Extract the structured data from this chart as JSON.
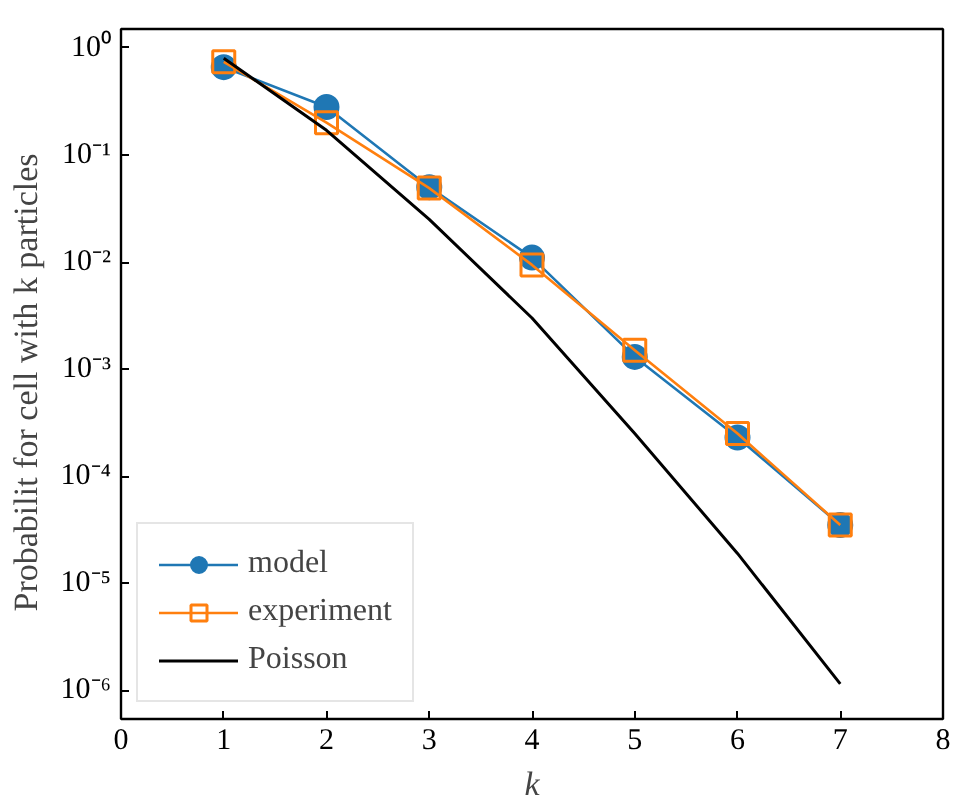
{
  "chart_data": {
    "type": "line",
    "xlabel": "k",
    "ylabel": "Probabilit   for cell with k particles",
    "x": [
      1,
      2,
      3,
      4,
      5,
      6,
      7
    ],
    "series": [
      {
        "name": "model",
        "color": "#1f77b4",
        "marker": "circle",
        "values": [
          0.66,
          0.28,
          0.05,
          0.011,
          0.0013,
          0.00023,
          3.5e-05
        ]
      },
      {
        "name": "experiment",
        "color": "#ff7f0e",
        "marker": "square",
        "values": [
          0.74,
          0.2,
          0.049,
          0.0094,
          0.0015,
          0.00025,
          3.5e-05
        ]
      },
      {
        "name": "Poisson",
        "color": "#000000",
        "marker": "none",
        "values": [
          0.8,
          0.17,
          0.025,
          0.003,
          0.00025,
          1.9e-05,
          1.15e-06
        ]
      }
    ],
    "log": "y",
    "xlim": [
      0,
      8
    ],
    "xticks": [
      0,
      1,
      2,
      3,
      4,
      5,
      6,
      7,
      8
    ],
    "ylim": [
      5.4e-07,
      1.5
    ],
    "yticks": [
      {
        "value": 1e-06,
        "label": "10⁻⁶"
      },
      {
        "value": 1e-05,
        "label": "10⁻⁵"
      },
      {
        "value": 0.0001,
        "label": "10⁻⁴"
      },
      {
        "value": 0.001,
        "label": "10⁻³"
      },
      {
        "value": 0.01,
        "label": "10⁻²"
      },
      {
        "value": 0.1,
        "label": "10⁻¹"
      },
      {
        "value": 1,
        "label": "10⁰"
      }
    ],
    "grid": false,
    "legend": "bottom left",
    "line_style": "solid"
  }
}
